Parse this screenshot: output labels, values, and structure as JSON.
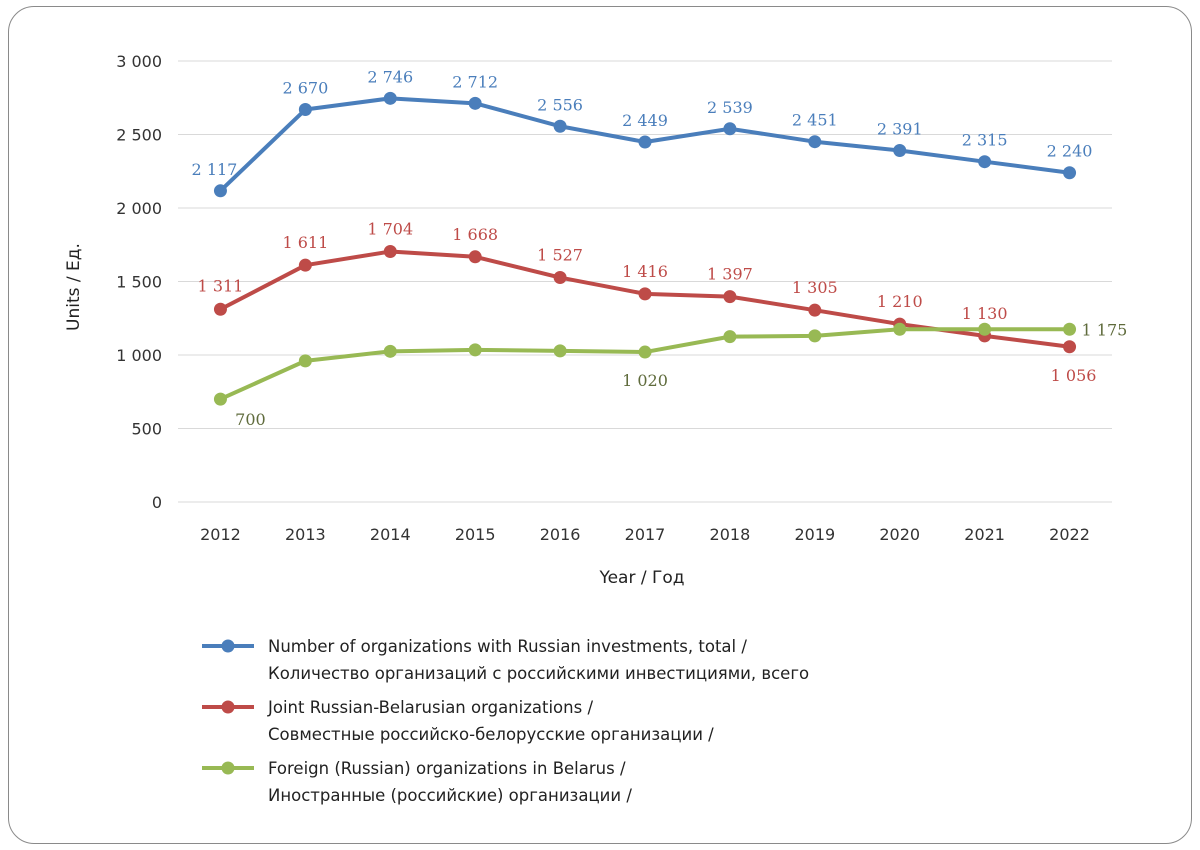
{
  "chart_data": {
    "type": "line",
    "xlabel": "Year / Год",
    "ylabel": "Units / Ед.",
    "ylim": [
      0,
      3000
    ],
    "yticks": [
      0,
      500,
      1000,
      1500,
      2000,
      2500,
      3000
    ],
    "ytick_labels": [
      "0",
      "500",
      "1 000",
      "1 500",
      "2 000",
      "2 500",
      "3 000"
    ],
    "x": [
      "2012",
      "2013",
      "2014",
      "2015",
      "2016",
      "2017",
      "2018",
      "2019",
      "2020",
      "2021",
      "2022"
    ],
    "grid": "horizontal",
    "legend_position": "bottom",
    "series": [
      {
        "name": "Number of organizations with Russian investments, total / Количество организаций с российскими инвестициями, всего",
        "legend_lines": [
          "Number of organizations with Russian investments, total /",
          "Количество организаций с российскими инвестициями, всего"
        ],
        "color": "#4a7ebb",
        "values": [
          2117,
          2670,
          2746,
          2712,
          2556,
          2449,
          2539,
          2451,
          2391,
          2315,
          2240
        ],
        "labels": [
          "2 117",
          "2 670",
          "2 746",
          "2 712",
          "2 556",
          "2 449",
          "2 539",
          "2 451",
          "2 391",
          "2 315",
          "2 240"
        ]
      },
      {
        "name": "Joint Russian-Belarusian organizations / Совместные российско-белорусские организации /",
        "legend_lines": [
          "Joint Russian-Belarusian organizations /",
          "Совместные российско-белорусские организации /"
        ],
        "color": "#be4b48",
        "values": [
          1311,
          1611,
          1704,
          1668,
          1527,
          1416,
          1397,
          1305,
          1210,
          1130,
          1056
        ],
        "labels": [
          "1 311",
          "1 611",
          "1 704",
          "1 668",
          "1 527",
          "1 416",
          "1 397",
          "1 305",
          "1 210",
          "1 130",
          "1 056"
        ]
      },
      {
        "name": "Foreign (Russian) organizations in Belarus / Иностранные (российские) организации /",
        "legend_lines": [
          "Foreign (Russian) organizations in Belarus /",
          "Иностранные (российские) организации /"
        ],
        "color": "#98b954",
        "values": [
          700,
          960,
          1025,
          1035,
          1028,
          1020,
          1125,
          1130,
          1175,
          1175,
          1175
        ],
        "labels": [
          "700",
          "",
          "",
          "",
          "",
          "1 020",
          "",
          "",
          "",
          "",
          "1 175"
        ]
      }
    ]
  }
}
